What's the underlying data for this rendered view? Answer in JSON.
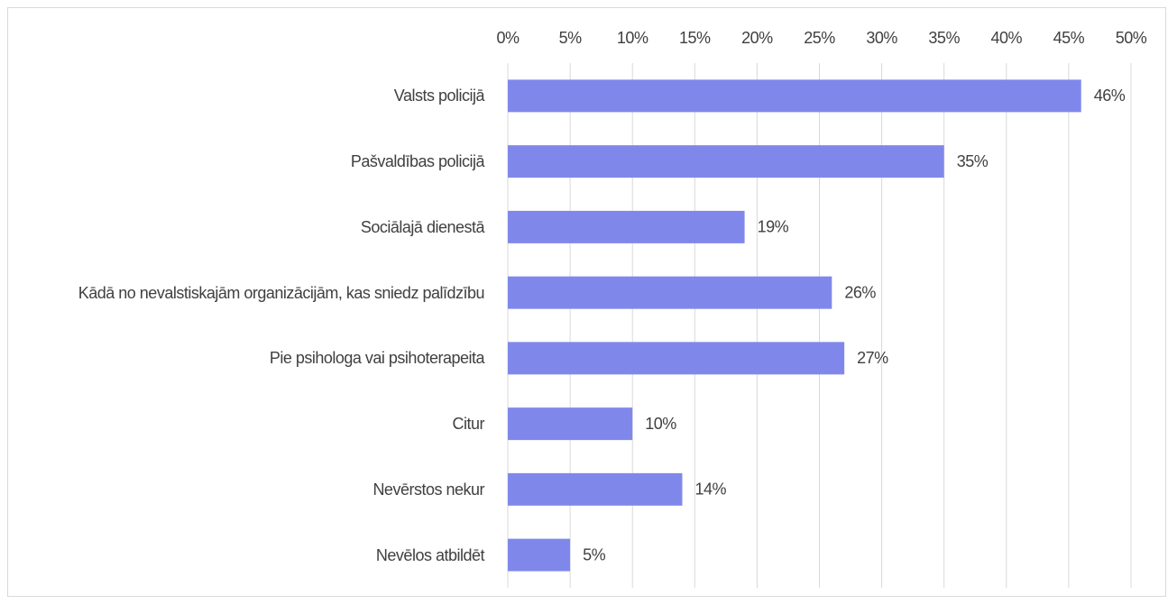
{
  "chart_data": {
    "type": "bar",
    "orientation": "horizontal",
    "categories": [
      "Valsts policijā",
      "Pašvaldības policijā",
      "Sociālajā dienestā",
      "Kādā no nevalstiskajām organizācijām, kas sniedz palīdzību",
      "Pie psihologa vai psihoterapeita",
      "Citur",
      "Nevērstos nekur",
      "Nevēlos atbildēt"
    ],
    "values": [
      46,
      35,
      19,
      26,
      27,
      10,
      14,
      5
    ],
    "value_labels": [
      "46%",
      "35%",
      "19%",
      "26%",
      "27%",
      "10%",
      "14%",
      "5%"
    ],
    "color": "#7f88ea",
    "xlim": [
      0,
      50
    ],
    "xticks": [
      {
        "value": 0,
        "label": "0%"
      },
      {
        "value": 5,
        "label": "5%"
      },
      {
        "value": 10,
        "label": "10%"
      },
      {
        "value": 15,
        "label": "15%"
      },
      {
        "value": 20,
        "label": "20%"
      },
      {
        "value": 25,
        "label": "25%"
      },
      {
        "value": 30,
        "label": "30%"
      },
      {
        "value": 35,
        "label": "35%"
      },
      {
        "value": 40,
        "label": "40%"
      },
      {
        "value": 45,
        "label": "45%"
      },
      {
        "value": 50,
        "label": "50%"
      }
    ],
    "grid": true
  }
}
